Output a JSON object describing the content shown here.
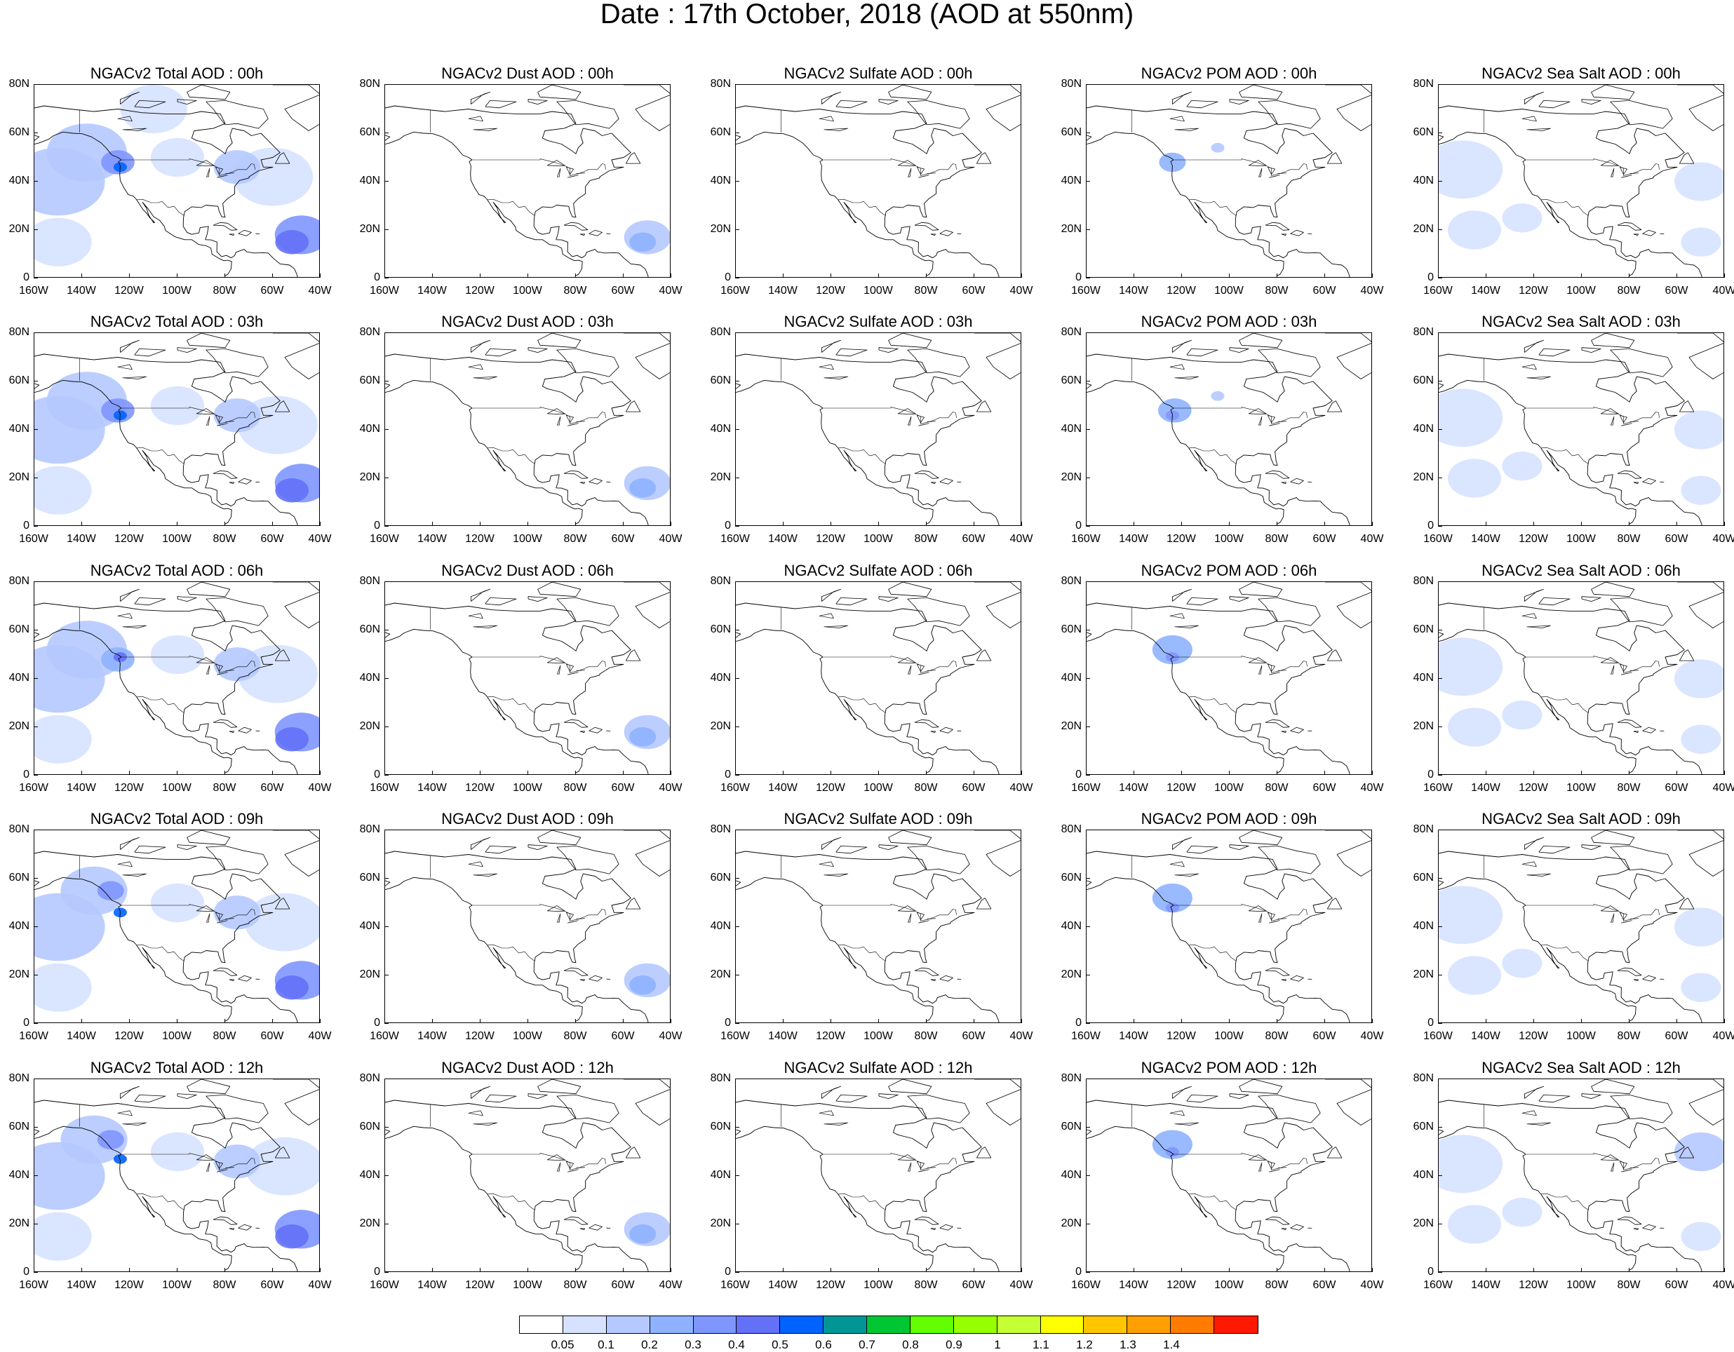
{
  "title": "Date : 17th October, 2018 (AOD at 550nm)",
  "columns": [
    "Total",
    "Dust",
    "Sulfate",
    "POM",
    "Sea Salt"
  ],
  "rows": [
    "00h",
    "03h",
    "06h",
    "09h",
    "12h"
  ],
  "panel_titles": [
    [
      "NGACv2 Total AOD : 00h",
      "NGACv2 Dust AOD : 00h",
      "NGACv2 Sulfate AOD : 00h",
      "NGACv2 POM AOD : 00h",
      "NGACv2 Sea Salt AOD : 00h"
    ],
    [
      "NGACv2 Total AOD : 03h",
      "NGACv2 Dust AOD : 03h",
      "NGACv2 Sulfate AOD : 03h",
      "NGACv2 POM AOD : 03h",
      "NGACv2 Sea Salt AOD : 03h"
    ],
    [
      "NGACv2 Total AOD : 06h",
      "NGACv2 Dust AOD : 06h",
      "NGACv2 Sulfate AOD : 06h",
      "NGACv2 POM AOD : 06h",
      "NGACv2 Sea Salt AOD : 06h"
    ],
    [
      "NGACv2 Total AOD : 09h",
      "NGACv2 Dust AOD : 09h",
      "NGACv2 Sulfate AOD : 09h",
      "NGACv2 POM AOD : 09h",
      "NGACv2 Sea Salt  AOD : 09h"
    ],
    [
      "NGACv2 Total AOD  : 12h",
      "NGACv2 Dust AOD : 12h",
      "NGACv2 Sulfate AOD : 12h",
      "NGACv2 POM  AOD : 12h",
      "NGACv2 Sea Salt  AOD : 12h"
    ]
  ],
  "y_ticks": [
    "80N",
    "60N",
    "40N",
    "20N",
    "0"
  ],
  "x_ticks": [
    "160W",
    "140W",
    "120W",
    "100W",
    "80W",
    "60W",
    "40W"
  ],
  "colorbar": {
    "levels": [
      "0.05",
      "0.1",
      "0.2",
      "0.3",
      "0.4",
      "0.5",
      "0.6",
      "0.7",
      "0.8",
      "0.9",
      "1",
      "1.1",
      "1.2",
      "1.3",
      "1.4"
    ],
    "colors": [
      "#ffffff",
      "#d6e2ff",
      "#b5c9ff",
      "#8eb2ff",
      "#7f96ff",
      "#6370f8",
      "#0063ff",
      "#009696",
      "#00c633",
      "#63ff00",
      "#96ff00",
      "#c6ff33",
      "#ffff00",
      "#ffc600",
      "#ffa000",
      "#ff7c00",
      "#ff1900"
    ]
  },
  "map_extent": {
    "lon": [
      -160,
      -40
    ],
    "lat": [
      0,
      80
    ]
  }
}
